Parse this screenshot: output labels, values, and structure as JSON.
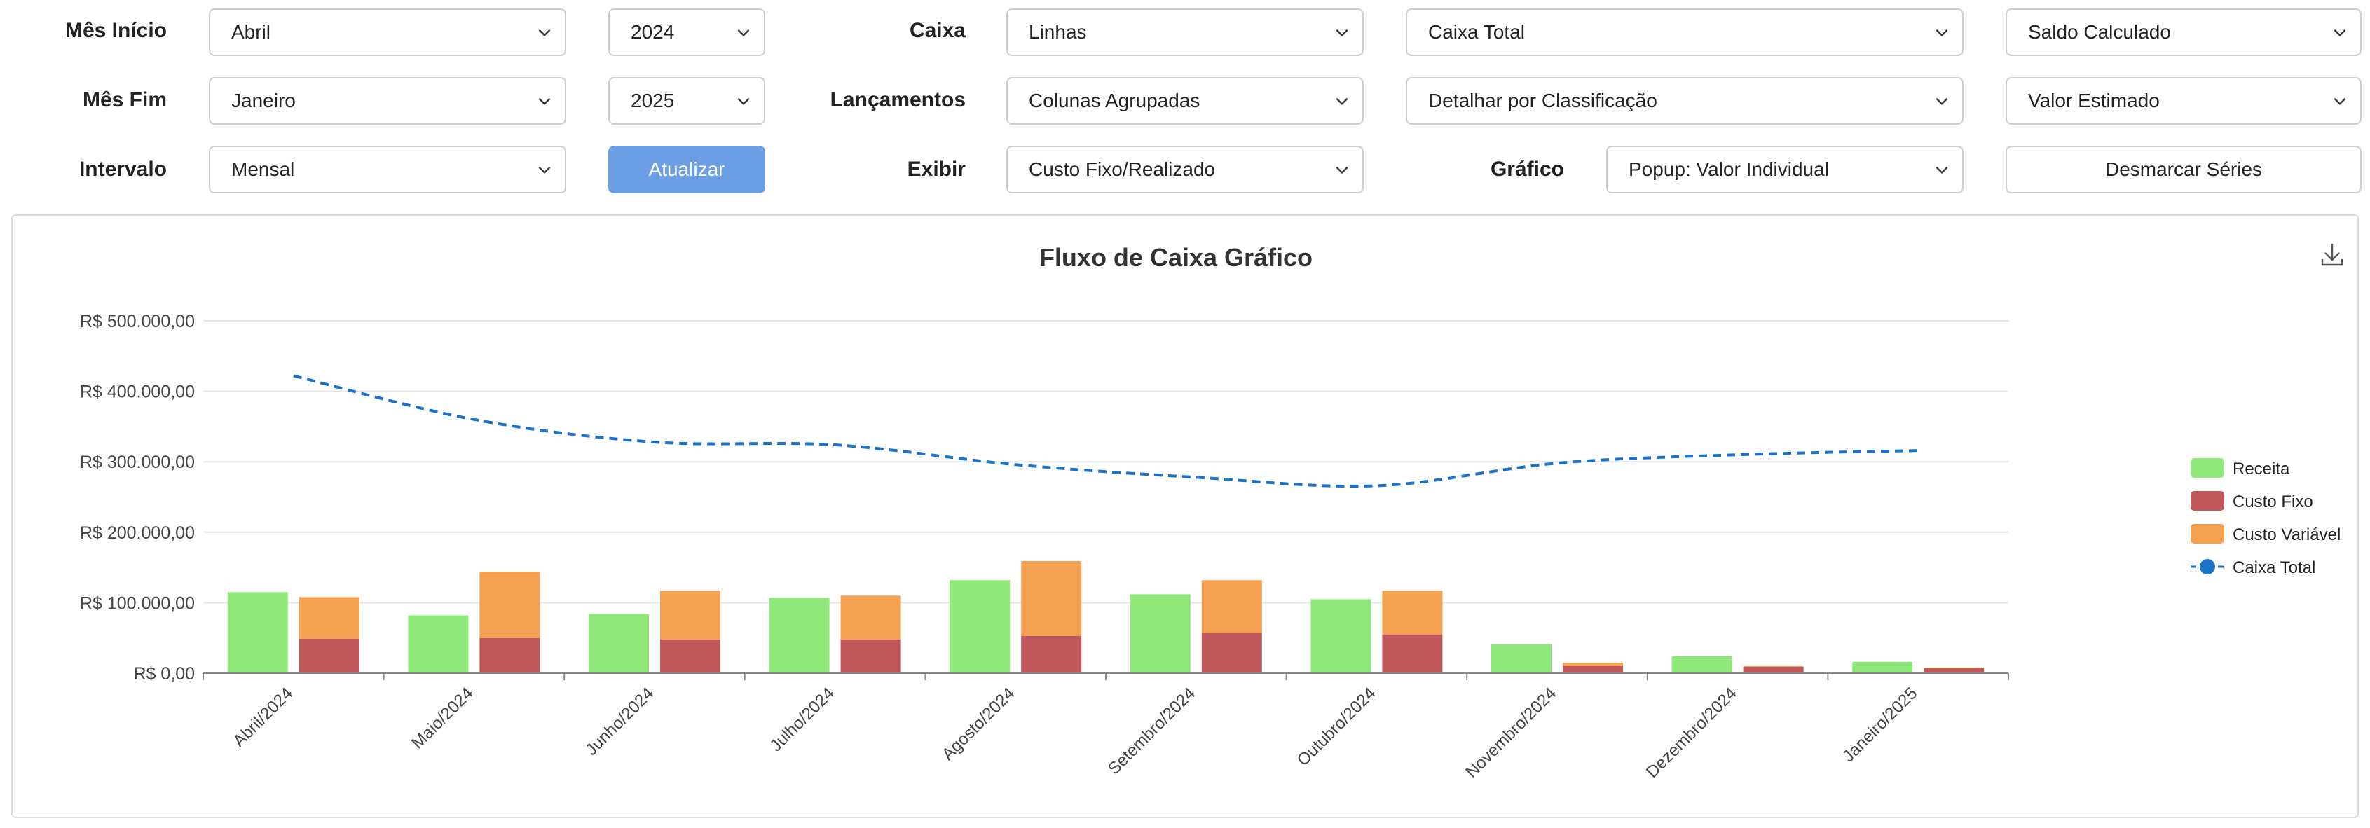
{
  "filters": {
    "mes_inicio": {
      "label": "Mês Início",
      "value": "Abril",
      "year": "2024"
    },
    "mes_fim": {
      "label": "Mês Fim",
      "value": "Janeiro",
      "year": "2025"
    },
    "intervalo": {
      "label": "Intervalo",
      "value": "Mensal"
    },
    "atualizar_label": "Atualizar",
    "caixa": {
      "label": "Caixa",
      "value": "Linhas",
      "value2": "Caixa Total",
      "value3": "Saldo Calculado"
    },
    "lancamentos": {
      "label": "Lançamentos",
      "value": "Colunas Agrupadas",
      "value2": "Detalhar por Classificação",
      "value3": "Valor Estimado"
    },
    "exibir": {
      "label": "Exibir",
      "value": "Custo Fixo/Realizado"
    },
    "grafico": {
      "label": "Gráfico",
      "value": "Popup: Valor Individual"
    },
    "desmarcar_label": "Desmarcar Séries"
  },
  "chart_data": {
    "type": "bar",
    "title": "Fluxo de Caixa Gráfico",
    "categories": [
      "Abril/2024",
      "Maio/2024",
      "Junho/2024",
      "Julho/2024",
      "Agosto/2024",
      "Setembro/2024",
      "Outubro/2024",
      "Novembro/2024",
      "Dezembro/2024",
      "Janeiro/2025"
    ],
    "ylim": [
      0,
      500000
    ],
    "y_ticks": [
      {
        "value": 0,
        "label": "R$ 0,00"
      },
      {
        "value": 100000,
        "label": "R$ 100.000,00"
      },
      {
        "value": 200000,
        "label": "R$ 200.000,00"
      },
      {
        "value": 300000,
        "label": "R$ 300.000,00"
      },
      {
        "value": 400000,
        "label": "R$ 400.000,00"
      },
      {
        "value": 500000,
        "label": "R$ 500.000,00"
      }
    ],
    "grid": true,
    "legend_position": "right",
    "series": [
      {
        "name": "Receita",
        "kind": "bar",
        "color": "#90e87a",
        "values": [
          115000,
          82000,
          84000,
          107000,
          132000,
          112000,
          105000,
          41000,
          24000,
          16000
        ]
      },
      {
        "name": "Custo Fixo",
        "kind": "stack-base",
        "color": "#c0575a",
        "values": [
          49000,
          50000,
          48000,
          48000,
          53000,
          57000,
          55000,
          10000,
          9000,
          7000
        ]
      },
      {
        "name": "Custo Variável",
        "kind": "stack-top",
        "color": "#f4a051",
        "values": [
          59000,
          94000,
          69000,
          62000,
          106000,
          75000,
          62000,
          5000,
          1000,
          1000
        ]
      },
      {
        "name": "Caixa Total",
        "kind": "line",
        "color": "#1a73c8",
        "values": [
          422000,
          360000,
          328000,
          324000,
          296000,
          278000,
          266000,
          298000,
          310000,
          316000
        ]
      }
    ]
  }
}
